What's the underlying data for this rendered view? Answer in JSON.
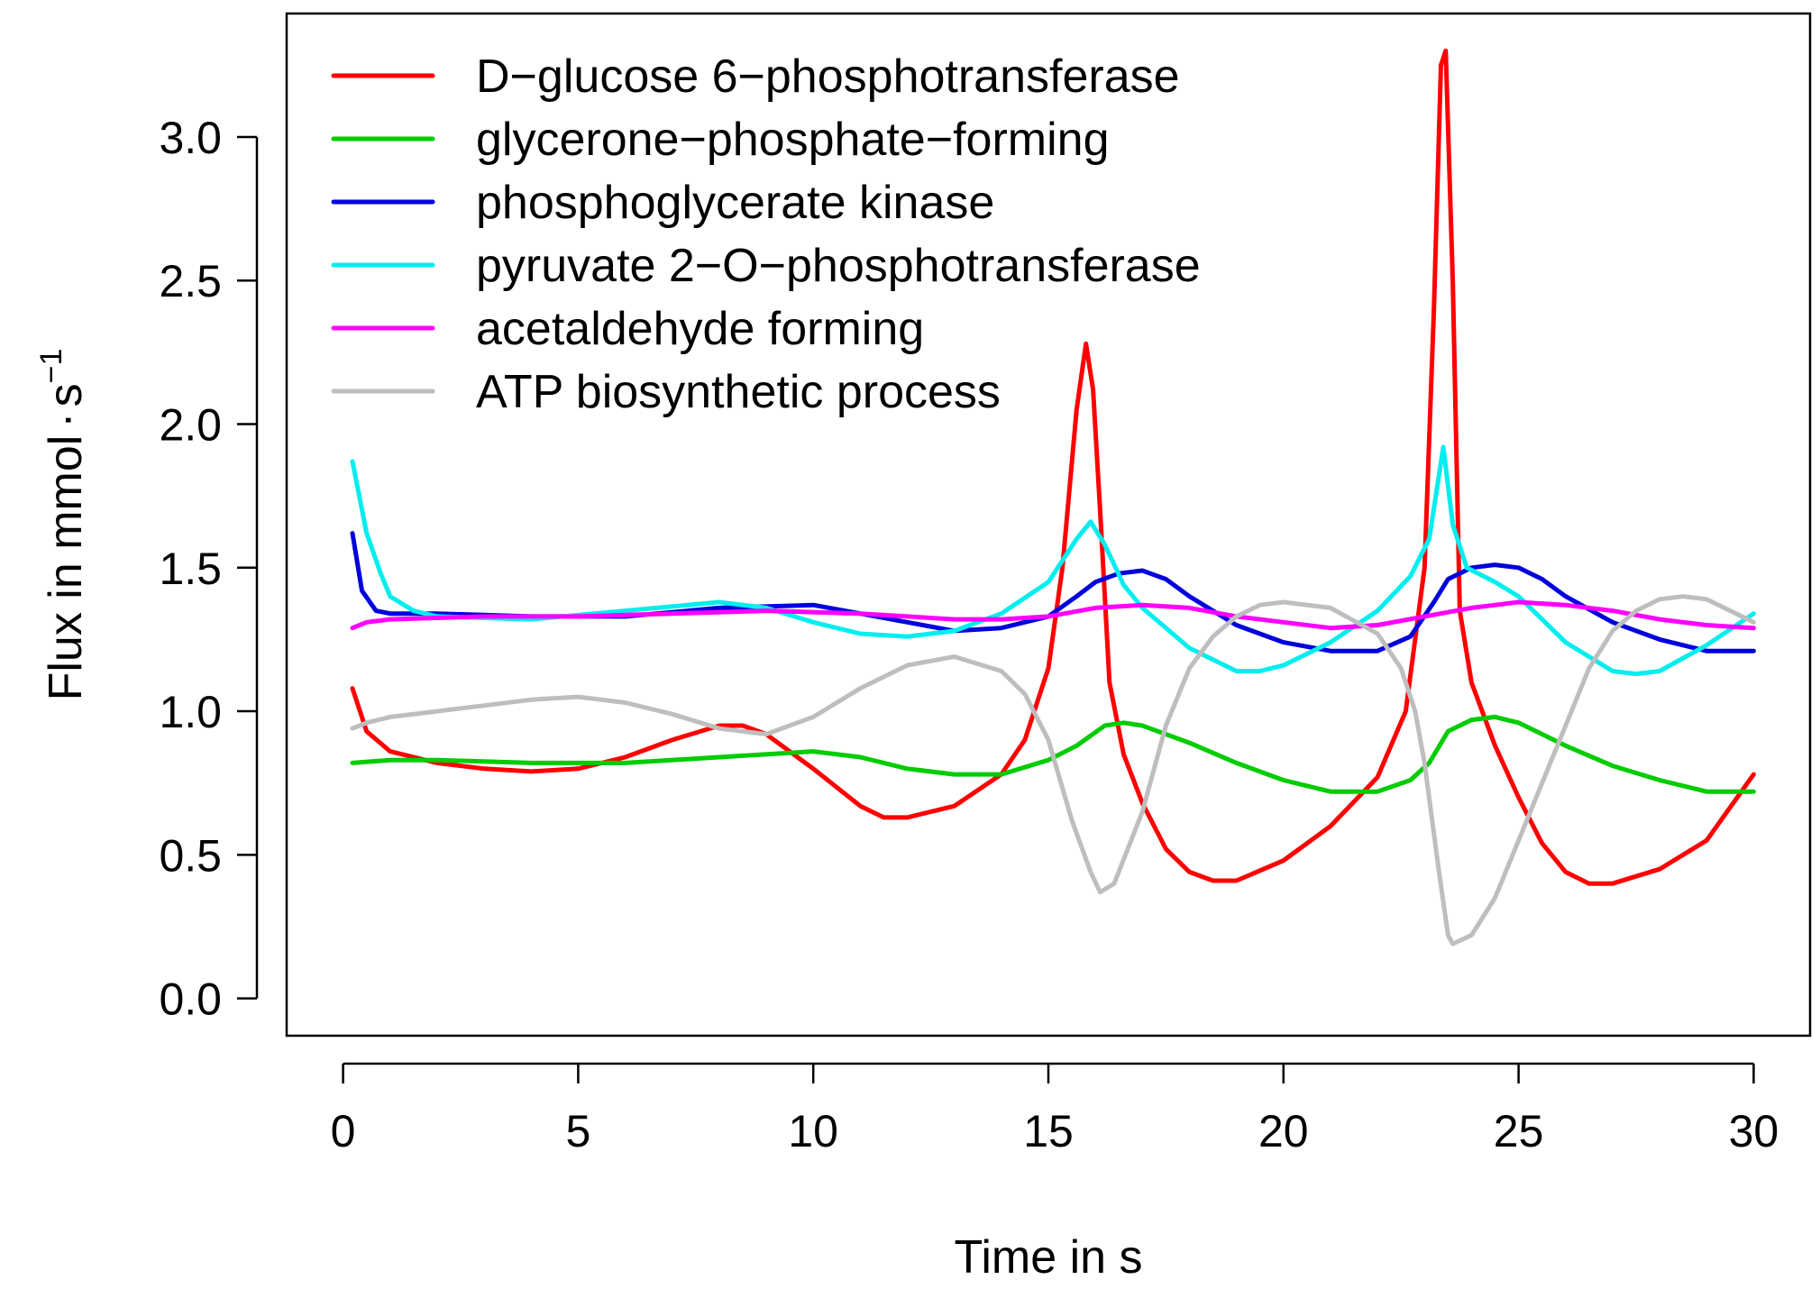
{
  "chart_data": {
    "type": "line",
    "title": "",
    "xlabel": "Time in s",
    "ylabel_main": "Flux in mmol",
    "ylabel_dot": "·",
    "ylabel_unit": "s",
    "ylabel_exp": "−1",
    "xlim": [
      -1.2,
      31.2
    ],
    "ylim": [
      -0.13,
      3.43
    ],
    "x_ticks": [
      0,
      5,
      10,
      15,
      20,
      25,
      30
    ],
    "x_tick_labels": [
      "0",
      "5",
      "10",
      "15",
      "20",
      "25",
      "30"
    ],
    "y_ticks": [
      0.0,
      0.5,
      1.0,
      1.5,
      2.0,
      2.5,
      3.0
    ],
    "y_tick_labels": [
      "0.0",
      "0.5",
      "1.0",
      "1.5",
      "2.0",
      "2.5",
      "3.0"
    ],
    "grid": false,
    "legend_position": "top-left",
    "series": [
      {
        "name": "D−glucose 6−phosphotransferase",
        "color": "#FF0000",
        "points": [
          [
            0.2,
            1.08
          ],
          [
            0.5,
            0.93
          ],
          [
            1,
            0.86
          ],
          [
            2,
            0.82
          ],
          [
            3,
            0.8
          ],
          [
            4,
            0.79
          ],
          [
            5,
            0.8
          ],
          [
            6,
            0.84
          ],
          [
            7,
            0.9
          ],
          [
            8,
            0.95
          ],
          [
            8.5,
            0.95
          ],
          [
            9,
            0.92
          ],
          [
            10,
            0.8
          ],
          [
            11,
            0.67
          ],
          [
            11.5,
            0.63
          ],
          [
            12,
            0.63
          ],
          [
            13,
            0.67
          ],
          [
            14,
            0.78
          ],
          [
            14.5,
            0.9
          ],
          [
            15,
            1.15
          ],
          [
            15.3,
            1.5
          ],
          [
            15.6,
            2.05
          ],
          [
            15.8,
            2.28
          ],
          [
            15.95,
            2.12
          ],
          [
            16.1,
            1.7
          ],
          [
            16.3,
            1.1
          ],
          [
            16.6,
            0.85
          ],
          [
            17,
            0.68
          ],
          [
            17.5,
            0.52
          ],
          [
            18,
            0.44
          ],
          [
            18.5,
            0.41
          ],
          [
            19,
            0.41
          ],
          [
            20,
            0.48
          ],
          [
            21,
            0.6
          ],
          [
            22,
            0.77
          ],
          [
            22.6,
            1.0
          ],
          [
            23,
            1.5
          ],
          [
            23.2,
            2.4
          ],
          [
            23.35,
            3.25
          ],
          [
            23.45,
            3.3
          ],
          [
            23.6,
            2.5
          ],
          [
            23.75,
            1.35
          ],
          [
            24,
            1.1
          ],
          [
            24.5,
            0.88
          ],
          [
            25,
            0.7
          ],
          [
            25.5,
            0.54
          ],
          [
            26,
            0.44
          ],
          [
            26.5,
            0.4
          ],
          [
            27,
            0.4
          ],
          [
            28,
            0.45
          ],
          [
            29,
            0.55
          ],
          [
            30,
            0.78
          ]
        ]
      },
      {
        "name": "glycerone−phosphate−forming",
        "color": "#00CC00",
        "points": [
          [
            0.2,
            0.82
          ],
          [
            1,
            0.83
          ],
          [
            2,
            0.83
          ],
          [
            4,
            0.82
          ],
          [
            6,
            0.82
          ],
          [
            8,
            0.84
          ],
          [
            10,
            0.86
          ],
          [
            11,
            0.84
          ],
          [
            12,
            0.8
          ],
          [
            13,
            0.78
          ],
          [
            14,
            0.78
          ],
          [
            15,
            0.83
          ],
          [
            15.6,
            0.88
          ],
          [
            16.2,
            0.95
          ],
          [
            16.6,
            0.96
          ],
          [
            17,
            0.95
          ],
          [
            18,
            0.89
          ],
          [
            19,
            0.82
          ],
          [
            20,
            0.76
          ],
          [
            21,
            0.72
          ],
          [
            22,
            0.72
          ],
          [
            22.7,
            0.76
          ],
          [
            23.1,
            0.82
          ],
          [
            23.5,
            0.93
          ],
          [
            24,
            0.97
          ],
          [
            24.5,
            0.98
          ],
          [
            25,
            0.96
          ],
          [
            26,
            0.88
          ],
          [
            27,
            0.81
          ],
          [
            28,
            0.76
          ],
          [
            29,
            0.72
          ],
          [
            30,
            0.72
          ]
        ]
      },
      {
        "name": "phosphoglycerate kinase",
        "color": "#0000DD",
        "points": [
          [
            0.2,
            1.62
          ],
          [
            0.4,
            1.42
          ],
          [
            0.7,
            1.35
          ],
          [
            1,
            1.34
          ],
          [
            2,
            1.34
          ],
          [
            4,
            1.33
          ],
          [
            6,
            1.33
          ],
          [
            8,
            1.36
          ],
          [
            10,
            1.37
          ],
          [
            11,
            1.34
          ],
          [
            12,
            1.31
          ],
          [
            13,
            1.28
          ],
          [
            14,
            1.29
          ],
          [
            15,
            1.33
          ],
          [
            15.6,
            1.4
          ],
          [
            16,
            1.45
          ],
          [
            16.5,
            1.48
          ],
          [
            17,
            1.49
          ],
          [
            17.5,
            1.46
          ],
          [
            18,
            1.4
          ],
          [
            19,
            1.3
          ],
          [
            20,
            1.24
          ],
          [
            21,
            1.21
          ],
          [
            22,
            1.21
          ],
          [
            22.7,
            1.26
          ],
          [
            23.2,
            1.38
          ],
          [
            23.5,
            1.46
          ],
          [
            24,
            1.5
          ],
          [
            24.5,
            1.51
          ],
          [
            25,
            1.5
          ],
          [
            25.5,
            1.46
          ],
          [
            26,
            1.4
          ],
          [
            27,
            1.31
          ],
          [
            28,
            1.25
          ],
          [
            29,
            1.21
          ],
          [
            30,
            1.21
          ]
        ]
      },
      {
        "name": "pyruvate 2−O−phosphotransferase",
        "color": "#00EEEE",
        "points": [
          [
            0.2,
            1.87
          ],
          [
            0.5,
            1.62
          ],
          [
            0.8,
            1.48
          ],
          [
            1,
            1.4
          ],
          [
            1.5,
            1.35
          ],
          [
            2,
            1.33
          ],
          [
            4,
            1.32
          ],
          [
            6,
            1.35
          ],
          [
            8,
            1.38
          ],
          [
            9,
            1.36
          ],
          [
            10,
            1.31
          ],
          [
            11,
            1.27
          ],
          [
            12,
            1.26
          ],
          [
            13,
            1.28
          ],
          [
            14,
            1.34
          ],
          [
            15,
            1.45
          ],
          [
            15.6,
            1.6
          ],
          [
            15.9,
            1.66
          ],
          [
            16.2,
            1.58
          ],
          [
            16.6,
            1.44
          ],
          [
            17,
            1.36
          ],
          [
            18,
            1.22
          ],
          [
            19,
            1.14
          ],
          [
            19.5,
            1.14
          ],
          [
            20,
            1.16
          ],
          [
            21,
            1.24
          ],
          [
            22,
            1.35
          ],
          [
            22.7,
            1.47
          ],
          [
            23.1,
            1.6
          ],
          [
            23.4,
            1.92
          ],
          [
            23.6,
            1.65
          ],
          [
            23.9,
            1.5
          ],
          [
            24.5,
            1.45
          ],
          [
            25,
            1.4
          ],
          [
            26,
            1.24
          ],
          [
            27,
            1.14
          ],
          [
            27.5,
            1.13
          ],
          [
            28,
            1.14
          ],
          [
            29,
            1.23
          ],
          [
            30,
            1.34
          ]
        ]
      },
      {
        "name": "acetaldehyde forming",
        "color": "#FF00FF",
        "points": [
          [
            0.2,
            1.29
          ],
          [
            0.5,
            1.31
          ],
          [
            1,
            1.32
          ],
          [
            3,
            1.33
          ],
          [
            5,
            1.33
          ],
          [
            7,
            1.34
          ],
          [
            9,
            1.35
          ],
          [
            11,
            1.34
          ],
          [
            13,
            1.32
          ],
          [
            14,
            1.32
          ],
          [
            15,
            1.33
          ],
          [
            16,
            1.36
          ],
          [
            17,
            1.37
          ],
          [
            18,
            1.36
          ],
          [
            19,
            1.33
          ],
          [
            20,
            1.31
          ],
          [
            21,
            1.29
          ],
          [
            22,
            1.3
          ],
          [
            23,
            1.33
          ],
          [
            24,
            1.36
          ],
          [
            25,
            1.38
          ],
          [
            26,
            1.37
          ],
          [
            27,
            1.35
          ],
          [
            28,
            1.32
          ],
          [
            29,
            1.3
          ],
          [
            30,
            1.29
          ]
        ]
      },
      {
        "name": "ATP biosynthetic process",
        "color": "#BEBEBE",
        "points": [
          [
            0.2,
            0.94
          ],
          [
            0.5,
            0.96
          ],
          [
            1,
            0.98
          ],
          [
            2,
            1.0
          ],
          [
            3,
            1.02
          ],
          [
            4,
            1.04
          ],
          [
            5,
            1.05
          ],
          [
            6,
            1.03
          ],
          [
            7,
            0.99
          ],
          [
            8,
            0.94
          ],
          [
            9,
            0.92
          ],
          [
            10,
            0.98
          ],
          [
            11,
            1.08
          ],
          [
            12,
            1.16
          ],
          [
            13,
            1.19
          ],
          [
            14,
            1.14
          ],
          [
            14.5,
            1.06
          ],
          [
            15,
            0.9
          ],
          [
            15.5,
            0.62
          ],
          [
            15.9,
            0.44
          ],
          [
            16.1,
            0.37
          ],
          [
            16.4,
            0.4
          ],
          [
            17,
            0.65
          ],
          [
            17.5,
            0.95
          ],
          [
            18,
            1.15
          ],
          [
            18.5,
            1.26
          ],
          [
            19,
            1.33
          ],
          [
            19.5,
            1.37
          ],
          [
            20,
            1.38
          ],
          [
            21,
            1.36
          ],
          [
            22,
            1.27
          ],
          [
            22.5,
            1.15
          ],
          [
            22.8,
            1.0
          ],
          [
            23,
            0.82
          ],
          [
            23.3,
            0.45
          ],
          [
            23.5,
            0.22
          ],
          [
            23.6,
            0.19
          ],
          [
            24,
            0.22
          ],
          [
            24.5,
            0.35
          ],
          [
            25,
            0.55
          ],
          [
            26,
            0.95
          ],
          [
            26.5,
            1.15
          ],
          [
            27,
            1.28
          ],
          [
            27.5,
            1.35
          ],
          [
            28,
            1.39
          ],
          [
            28.5,
            1.4
          ],
          [
            29,
            1.39
          ],
          [
            30,
            1.31
          ]
        ]
      }
    ]
  }
}
